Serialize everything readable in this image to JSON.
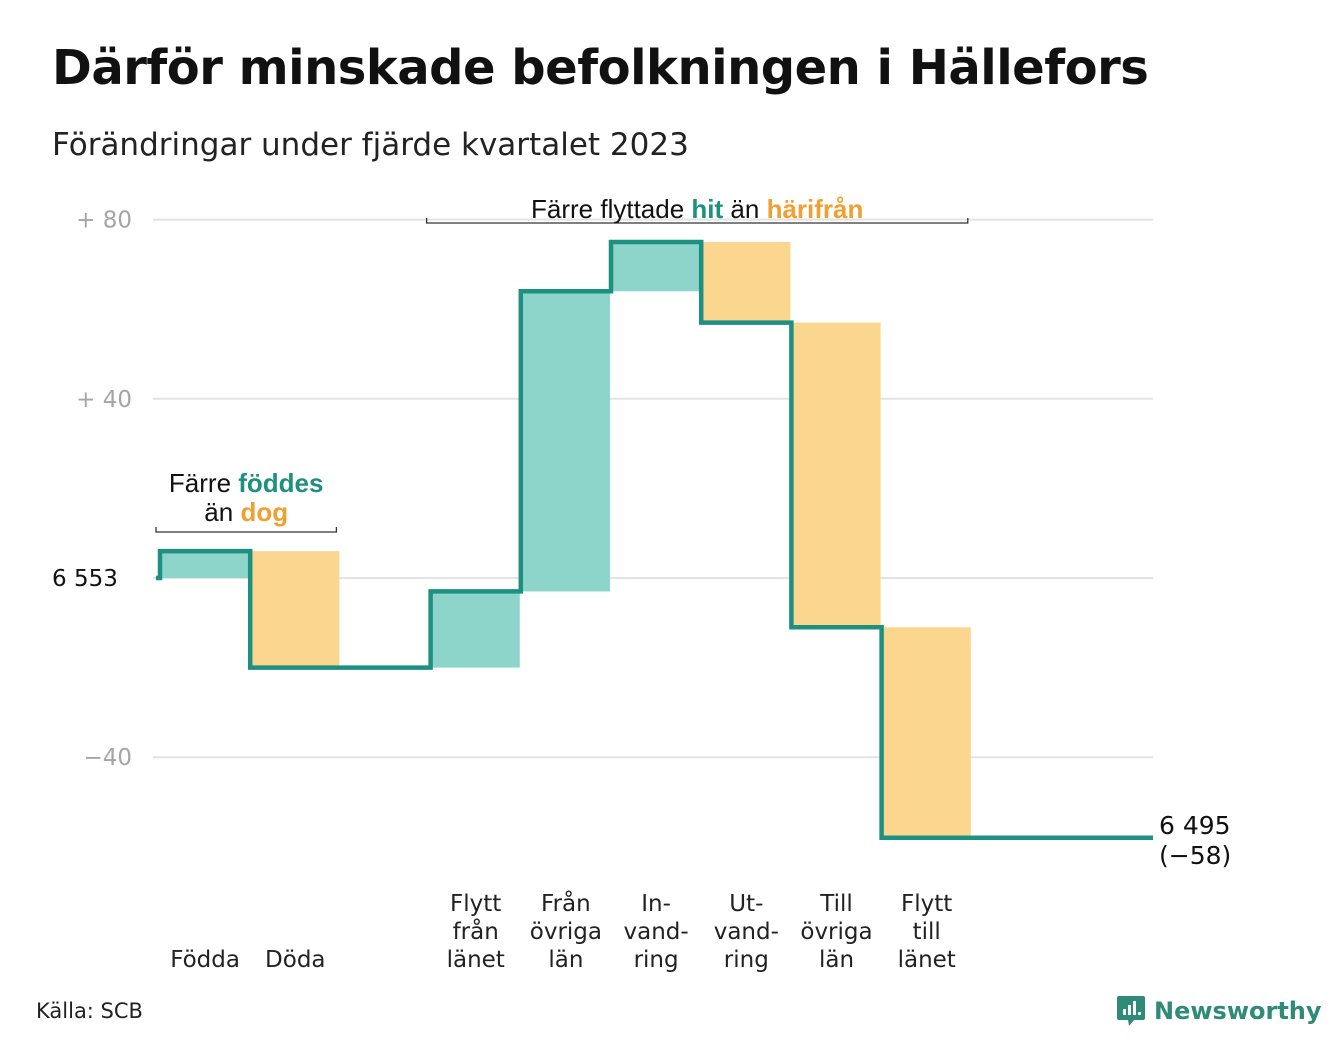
{
  "title": "Därför minskade befolkningen i Hällefors",
  "subtitle": "Förändringar under fjärde kvartalet 2023",
  "source": "Källa: SCB",
  "brand": "Newsworthy",
  "colors": {
    "inflow": "#8dd5cb",
    "outflow": "#fad68e",
    "line": "#1e9080",
    "teal_text": "#1e9080",
    "orange_text": "#f0a030",
    "grid": "#e3e3e3"
  },
  "chart_data": {
    "type": "waterfall",
    "title": "Därför minskade befolkningen i Hällefors",
    "subtitle": "Förändringar under fjärde kvartalet 2023",
    "start_value": 6553,
    "start_label": "6 553",
    "end_value": 6495,
    "end_label": "6 495",
    "end_change_label": "(−58)",
    "ylim": [
      -60,
      80
    ],
    "yticks": [
      {
        "value": 80,
        "label": "+  80"
      },
      {
        "value": 40,
        "label": "+  40"
      },
      {
        "value": 0,
        "label": "6  553"
      },
      {
        "value": -40,
        "label": "−40"
      }
    ],
    "grid": true,
    "categories": [
      {
        "lines": [
          "Födda"
        ],
        "change": 6,
        "kind": "inflow"
      },
      {
        "lines": [
          "Döda"
        ],
        "change": -26,
        "kind": "outflow"
      },
      {
        "lines": [],
        "change": 0,
        "kind": "gap"
      },
      {
        "lines": [
          "Flytt",
          "från",
          "länet"
        ],
        "change": 17,
        "kind": "inflow"
      },
      {
        "lines": [
          "Från",
          "övriga",
          "län"
        ],
        "change": 67,
        "kind": "inflow"
      },
      {
        "lines": [
          "In-",
          "vand-",
          "ring"
        ],
        "change": 11,
        "kind": "inflow"
      },
      {
        "lines": [
          "Ut-",
          "vand-",
          "ring"
        ],
        "change": -18,
        "kind": "outflow"
      },
      {
        "lines": [
          "Till",
          "övriga",
          "län"
        ],
        "change": -68,
        "kind": "outflow"
      },
      {
        "lines": [
          "Flytt",
          "till",
          "länet"
        ],
        "change": -47,
        "kind": "outflow"
      }
    ],
    "annotations": [
      {
        "parts": [
          {
            "text": "Färre ",
            "style": "plain"
          },
          {
            "text": "föddes",
            "style": "teal"
          }
        ],
        "line2": [
          {
            "text": "än ",
            "style": "plain"
          },
          {
            "text": "dog",
            "style": "orange"
          }
        ],
        "span": [
          0,
          1
        ]
      },
      {
        "parts": [
          {
            "text": "Färre flyttade ",
            "style": "plain"
          },
          {
            "text": "hit",
            "style": "teal"
          },
          {
            "text": "  än ",
            "style": "plain"
          },
          {
            "text": "härifrån",
            "style": "orange"
          }
        ],
        "span": [
          3,
          8
        ]
      }
    ]
  }
}
